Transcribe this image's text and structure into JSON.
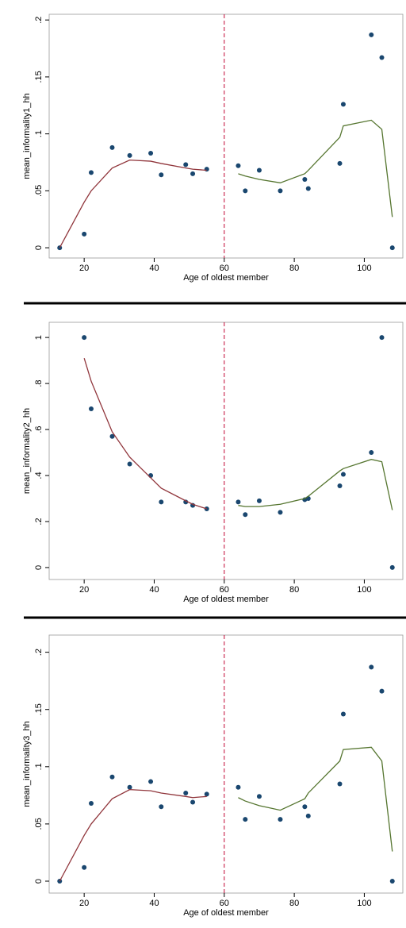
{
  "chart_data": [
    {
      "type": "scatter",
      "xlabel": "Age of oldest member",
      "ylabel": "mean_informality1_hh",
      "xlim": [
        10,
        111
      ],
      "ylim": [
        -0.009,
        0.205
      ],
      "xticks": [
        20,
        40,
        60,
        80,
        100
      ],
      "yticks": [
        0,
        {
          "value": 0.05,
          "label": ".05"
        },
        {
          "value": 0.1,
          "label": ".1"
        },
        {
          "value": 0.15,
          "label": ".15"
        },
        {
          "value": 0.2,
          "label": ".2"
        }
      ],
      "cutoff": 60,
      "cutoff_color": "#c10534",
      "series": [
        {
          "mode": "markers",
          "color": "#1a476f",
          "x": [
            13,
            20,
            22,
            28,
            33,
            39,
            42,
            49,
            51,
            55,
            64,
            66,
            70,
            76,
            83,
            84,
            93,
            94,
            102,
            105,
            108
          ],
          "values": [
            0,
            0.012,
            0.066,
            0.088,
            0.081,
            0.083,
            0.064,
            0.073,
            0.065,
            0.069,
            0.072,
            0.05,
            0.068,
            0.05,
            0.06,
            0.052,
            0.074,
            0.126,
            0.187,
            0.167,
            0
          ]
        },
        {
          "mode": "line",
          "color": "#90353b",
          "x": [
            13,
            20,
            22,
            28,
            33,
            39,
            42,
            49,
            51,
            55
          ],
          "values": [
            0,
            0.04,
            0.05,
            0.07,
            0.077,
            0.076,
            0.074,
            0.07,
            0.069,
            0.068
          ]
        },
        {
          "mode": "line",
          "color": "#55752f",
          "x": [
            64,
            66,
            70,
            76,
            83,
            84,
            93,
            94,
            102,
            105,
            108
          ],
          "values": [
            0.065,
            0.063,
            0.06,
            0.057,
            0.065,
            0.068,
            0.097,
            0.107,
            0.112,
            0.104,
            0.027
          ]
        }
      ]
    },
    {
      "type": "scatter",
      "xlabel": "Age of oldest member",
      "ylabel": "mean_informality2_hh",
      "xlim": [
        10,
        111
      ],
      "ylim": [
        -0.052,
        1.066
      ],
      "xticks": [
        20,
        40,
        60,
        80,
        100
      ],
      "yticks": [
        0,
        {
          "value": 0.2,
          "label": ".2"
        },
        {
          "value": 0.4,
          "label": ".4"
        },
        {
          "value": 0.6,
          "label": ".6"
        },
        {
          "value": 0.8,
          "label": ".8"
        },
        1
      ],
      "cutoff": 60,
      "cutoff_color": "#c10534",
      "series": [
        {
          "mode": "markers",
          "color": "#1a476f",
          "x": [
            20,
            22,
            28,
            33,
            39,
            42,
            49,
            51,
            55,
            64,
            66,
            70,
            76,
            83,
            84,
            93,
            94,
            102,
            105,
            108
          ],
          "values": [
            1,
            0.69,
            0.57,
            0.45,
            0.4,
            0.285,
            0.285,
            0.27,
            0.255,
            0.285,
            0.23,
            0.29,
            0.24,
            0.295,
            0.3,
            0.355,
            0.405,
            0.5,
            1,
            0
          ]
        },
        {
          "mode": "line",
          "color": "#90353b",
          "x": [
            20,
            22,
            28,
            33,
            39,
            42,
            49,
            51,
            55
          ],
          "values": [
            0.91,
            0.81,
            0.59,
            0.48,
            0.39,
            0.345,
            0.29,
            0.275,
            0.255
          ]
        },
        {
          "mode": "line",
          "color": "#55752f",
          "x": [
            64,
            66,
            70,
            76,
            83,
            84,
            93,
            94,
            102,
            105,
            108
          ],
          "values": [
            0.27,
            0.265,
            0.265,
            0.275,
            0.3,
            0.31,
            0.42,
            0.43,
            0.47,
            0.46,
            0.25
          ]
        }
      ]
    },
    {
      "type": "scatter",
      "xlabel": "Age of oldest member",
      "ylabel": "mean_informality3_hh",
      "xlim": [
        10,
        111
      ],
      "ylim": [
        -0.0104,
        0.215
      ],
      "xticks": [
        20,
        40,
        60,
        80,
        100
      ],
      "yticks": [
        0,
        {
          "value": 0.05,
          "label": ".05"
        },
        {
          "value": 0.1,
          "label": ".1"
        },
        {
          "value": 0.15,
          "label": ".15"
        },
        {
          "value": 0.2,
          "label": ".2"
        }
      ],
      "cutoff": 60,
      "cutoff_color": "#c10534",
      "series": [
        {
          "mode": "markers",
          "color": "#1a476f",
          "x": [
            13,
            20,
            22,
            28,
            33,
            39,
            42,
            49,
            51,
            55,
            64,
            66,
            70,
            76,
            83,
            84,
            93,
            94,
            102,
            105,
            108
          ],
          "values": [
            0,
            0.012,
            0.068,
            0.091,
            0.082,
            0.087,
            0.065,
            0.077,
            0.069,
            0.076,
            0.082,
            0.054,
            0.074,
            0.054,
            0.065,
            0.057,
            0.085,
            0.146,
            0.187,
            0.166,
            0
          ]
        },
        {
          "mode": "line",
          "color": "#90353b",
          "x": [
            13,
            20,
            22,
            28,
            33,
            39,
            42,
            49,
            51,
            55
          ],
          "values": [
            0,
            0.04,
            0.05,
            0.072,
            0.08,
            0.079,
            0.077,
            0.074,
            0.073,
            0.074
          ]
        },
        {
          "mode": "line",
          "color": "#55752f",
          "x": [
            64,
            66,
            70,
            76,
            83,
            84,
            93,
            94,
            102,
            105,
            108
          ],
          "values": [
            0.073,
            0.07,
            0.066,
            0.062,
            0.072,
            0.077,
            0.105,
            0.115,
            0.117,
            0.105,
            0.026
          ]
        }
      ]
    }
  ]
}
